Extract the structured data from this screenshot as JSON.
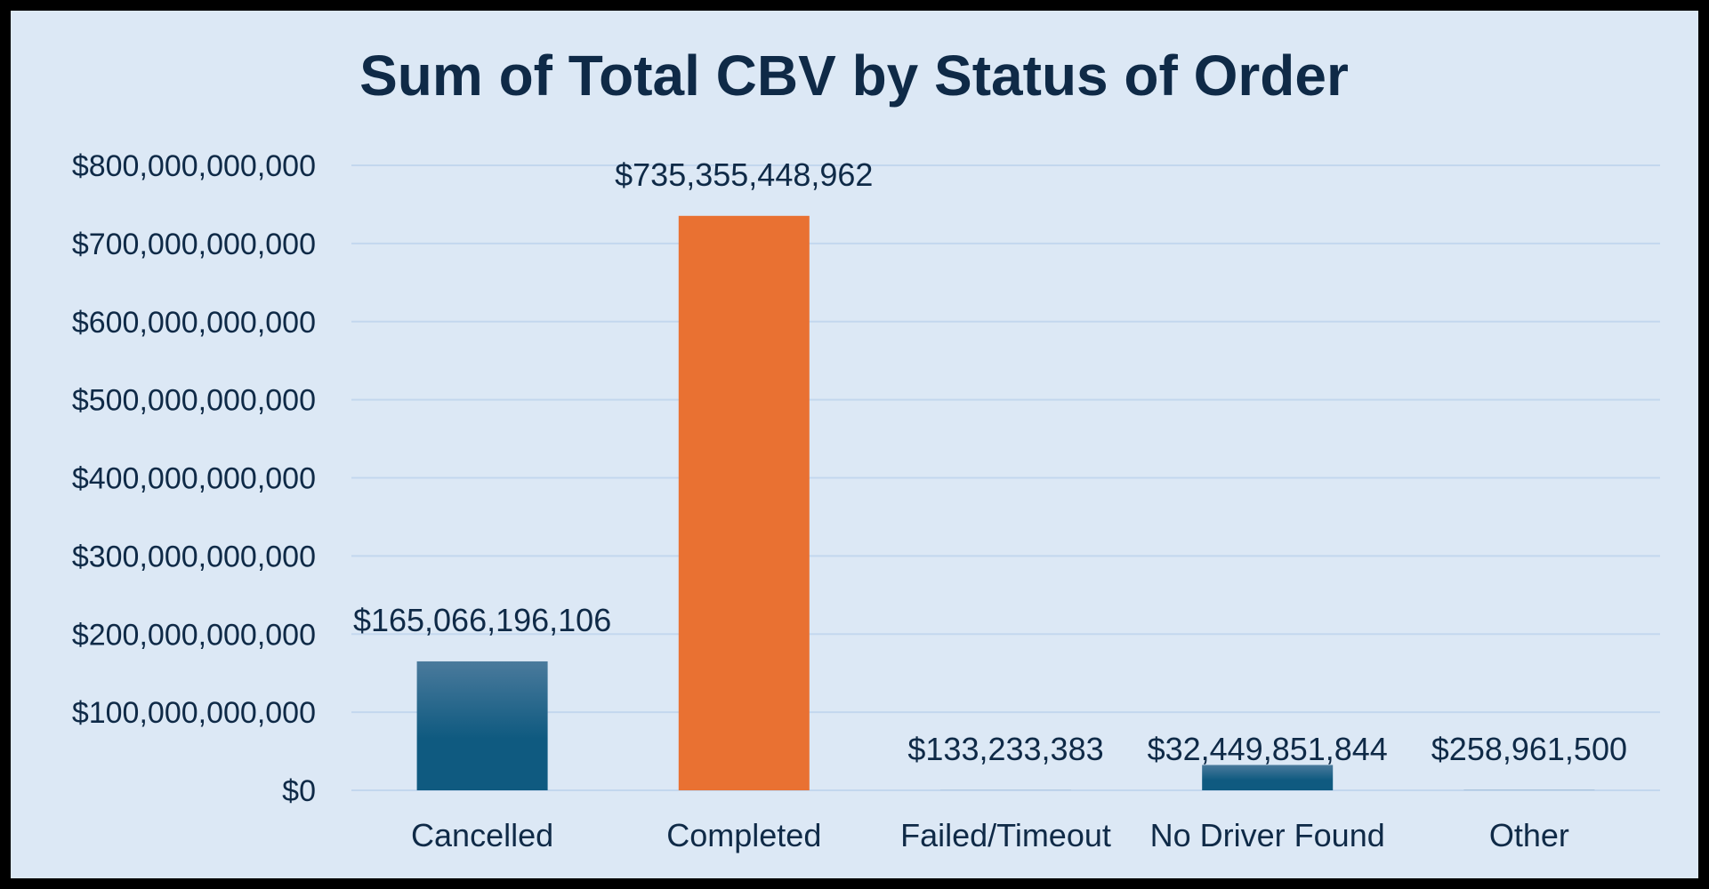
{
  "chart_data": {
    "type": "bar",
    "title": "Sum of Total CBV by Status of Order",
    "xlabel": "",
    "ylabel": "",
    "categories": [
      "Cancelled",
      "Completed",
      "Failed/Timeout",
      "No Driver Found",
      "Other"
    ],
    "values": [
      165066196106,
      735355448962,
      133233383,
      32449851844,
      258961500
    ],
    "data_labels": [
      "$165,066,196,106",
      "$735,355,448,962",
      "$133,233,383",
      "$32,449,851,844",
      "$258,961,500"
    ],
    "ylim": [
      0,
      800000000000
    ],
    "yticks": [
      0,
      100000000000,
      200000000000,
      300000000000,
      400000000000,
      500000000000,
      600000000000,
      700000000000,
      800000000000
    ],
    "ytick_labels": [
      "$0",
      "$100,000,000,000",
      "$200,000,000,000",
      "$300,000,000,000",
      "$400,000,000,000",
      "$500,000,000,000",
      "$600,000,000,000",
      "$700,000,000,000",
      "$800,000,000,000"
    ],
    "grid": true,
    "legend": "none",
    "colors": {
      "default_bar": "#0f5a80",
      "default_bar_top": "#4a7a9c",
      "highlight_bar": "#e97132",
      "gridline": "#c3d7ee",
      "text": "#0f2a47",
      "background": "#dce8f5"
    },
    "highlight_index": 1
  }
}
